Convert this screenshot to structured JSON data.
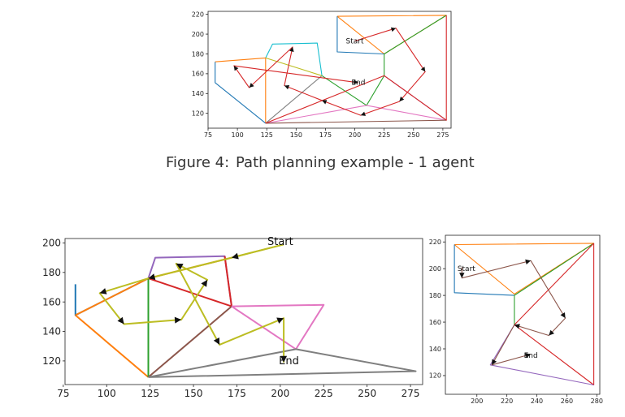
{
  "caption": {
    "label": "Figure 4:",
    "text": "Path planning example - 1 agent"
  },
  "chart_data": [
    {
      "type": "line",
      "xlim": [
        75,
        282
      ],
      "ylim": [
        105,
        223
      ],
      "xticks": [
        "75",
        "100",
        "125",
        "150",
        "175",
        "200",
        "225",
        "250",
        "275"
      ],
      "yticks": [
        "120",
        "140",
        "160",
        "180",
        "200",
        "220"
      ],
      "annotations": [
        {
          "text": "Start",
          "x": 200,
          "y": 193
        },
        {
          "text": "End",
          "x": 203,
          "y": 151
        }
      ],
      "polygons": [
        {
          "color": "#ff7f0e",
          "points": [
            [
              185,
              218
            ],
            [
              278,
              219
            ],
            [
              225,
              180
            ],
            [
              185,
              218
            ]
          ]
        },
        {
          "color": "#1f77b4",
          "points": [
            [
              185,
              218
            ],
            [
              185,
              182
            ],
            [
              225,
              180
            ]
          ]
        },
        {
          "color": "#2ca02c",
          "points": [
            [
              278,
              219
            ],
            [
              225,
              180
            ],
            [
              225,
              158
            ],
            [
              210,
              128
            ],
            [
              172,
              158
            ]
          ]
        },
        {
          "color": "#17becf",
          "points": [
            [
              124,
              176
            ],
            [
              130,
              190
            ],
            [
              168,
              191
            ],
            [
              172,
              158
            ]
          ]
        },
        {
          "color": "#ff7f0e",
          "points": [
            [
              81,
              172
            ],
            [
              124,
              176
            ],
            [
              124,
              110
            ]
          ]
        },
        {
          "color": "#1f77b4",
          "points": [
            [
              81,
              172
            ],
            [
              81,
              151
            ],
            [
              124,
              110
            ]
          ]
        },
        {
          "color": "#7f7f7f",
          "points": [
            [
              124,
              110
            ],
            [
              172,
              158
            ]
          ]
        },
        {
          "color": "#e377c2",
          "points": [
            [
              124,
              110
            ],
            [
              210,
              128
            ],
            [
              278,
              113
            ]
          ]
        },
        {
          "color": "#9467bd",
          "points": [
            [
              225,
              158
            ],
            [
              278,
              113
            ]
          ]
        },
        {
          "color": "#8c564b",
          "points": [
            [
              124,
              110
            ],
            [
              278,
              113
            ]
          ]
        },
        {
          "color": "#d62728",
          "points": [
            [
              278,
              219
            ],
            [
              278,
              113
            ],
            [
              225,
              158
            ],
            [
              124,
              110
            ]
          ]
        },
        {
          "color": "#bcbd22",
          "points": [
            [
              124,
              176
            ],
            [
              172,
              158
            ]
          ]
        }
      ],
      "path": {
        "color": "#d62728",
        "points": [
          [
            200,
            193
          ],
          [
            235,
            206
          ],
          [
            260,
            162
          ],
          [
            238,
            132
          ],
          [
            205,
            118
          ],
          [
            172,
            133
          ],
          [
            140,
            148
          ],
          [
            147,
            187
          ],
          [
            110,
            146
          ],
          [
            97,
            168
          ],
          [
            203,
            151
          ]
        ]
      }
    },
    {
      "type": "line",
      "xlim": [
        76,
        282
      ],
      "ylim": [
        104,
        203
      ],
      "xticks": [
        "75",
        "100",
        "125",
        "150",
        "175",
        "200",
        "225",
        "250",
        "275"
      ],
      "yticks": [
        "120",
        "140",
        "160",
        "180",
        "200"
      ],
      "annotations": [
        {
          "text": "Start",
          "x": 200,
          "y": 201
        },
        {
          "text": "End",
          "x": 205,
          "y": 120
        }
      ],
      "polygons": [
        {
          "color": "#1f77b4",
          "points": [
            [
              82,
              172
            ],
            [
              82,
              151
            ],
            [
              124,
              176
            ]
          ]
        },
        {
          "color": "#ff7f0e",
          "points": [
            [
              82,
              151
            ],
            [
              124,
              109
            ]
          ]
        },
        {
          "color": "#ff7f0e",
          "points": [
            [
              82,
              151
            ],
            [
              124,
              176
            ],
            [
              172,
              190
            ]
          ]
        },
        {
          "color": "#9467bd",
          "points": [
            [
              124,
              176
            ],
            [
              128,
              190
            ],
            [
              168,
              191
            ],
            [
              172,
              157
            ]
          ]
        },
        {
          "color": "#2ca02c",
          "points": [
            [
              124,
              176
            ],
            [
              124,
              109
            ]
          ]
        },
        {
          "color": "#d62728",
          "points": [
            [
              124,
              176
            ],
            [
              172,
              157
            ],
            [
              168,
              191
            ]
          ]
        },
        {
          "color": "#8c564b",
          "points": [
            [
              124,
              109
            ],
            [
              172,
              157
            ]
          ]
        },
        {
          "color": "#e377c2",
          "points": [
            [
              172,
              157
            ],
            [
              225,
              158
            ],
            [
              209,
              128
            ],
            [
              172,
              157
            ]
          ]
        },
        {
          "color": "#7f7f7f",
          "points": [
            [
              124,
              109
            ],
            [
              209,
              128
            ],
            [
              278,
              113
            ],
            [
              124,
              109
            ]
          ]
        },
        {
          "color": "#bcbd22",
          "points": [
            [
              172,
              190
            ],
            [
              202,
              199
            ]
          ]
        }
      ],
      "path": {
        "color": "#bcbd22",
        "points": [
          [
            202,
            199
          ],
          [
            172,
            190
          ],
          [
            124,
            176
          ],
          [
            96,
            166
          ],
          [
            110,
            145
          ],
          [
            143,
            148
          ],
          [
            158,
            175
          ],
          [
            140,
            186
          ],
          [
            165,
            131
          ],
          [
            202,
            149
          ],
          [
            202,
            119
          ]
        ]
      }
    },
    {
      "type": "line",
      "xlim": [
        179,
        282
      ],
      "ylim": [
        106,
        225
      ],
      "xticks": [
        "200",
        "220",
        "240",
        "260",
        "280"
      ],
      "yticks": [
        "120",
        "140",
        "160",
        "180",
        "200",
        "220"
      ],
      "annotations": [
        {
          "text": "Start",
          "x": 193,
          "y": 200
        },
        {
          "text": "End",
          "x": 236,
          "y": 135
        }
      ],
      "polygons": [
        {
          "color": "#ff7f0e",
          "points": [
            [
              185,
              218
            ],
            [
              278,
              219
            ],
            [
              225,
              181
            ],
            [
              185,
              218
            ]
          ]
        },
        {
          "color": "#1f77b4",
          "points": [
            [
              185,
              218
            ],
            [
              185,
              182
            ],
            [
              225,
              180
            ]
          ]
        },
        {
          "color": "#2ca02c",
          "points": [
            [
              278,
              219
            ],
            [
              225,
              180
            ],
            [
              225,
              158
            ]
          ]
        },
        {
          "color": "#d62728",
          "points": [
            [
              278,
              219
            ],
            [
              278,
              113
            ],
            [
              225,
              158
            ],
            [
              278,
              219
            ]
          ]
        },
        {
          "color": "#9467bd",
          "points": [
            [
              225,
              158
            ],
            [
              209,
              128
            ],
            [
              278,
              113
            ]
          ]
        }
      ],
      "path": {
        "color": "#8c564b",
        "points": [
          [
            190,
            201
          ],
          [
            190,
            193
          ],
          [
            236,
            206
          ],
          [
            259,
            163
          ],
          [
            248,
            150
          ],
          [
            225,
            158
          ],
          [
            210,
            128
          ],
          [
            236,
            136
          ]
        ]
      }
    }
  ]
}
